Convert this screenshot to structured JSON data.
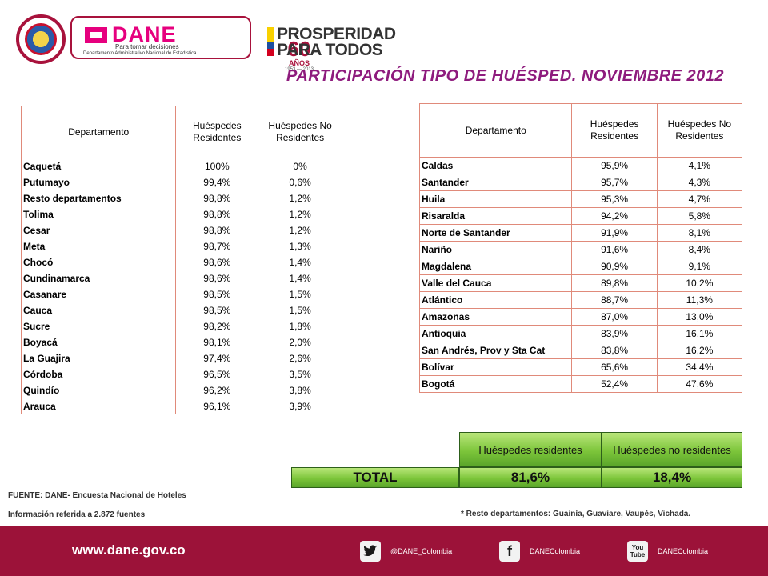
{
  "header": {
    "seal_text": "REPÚBLICA DE COLOMBIA",
    "dane": {
      "wordmark": "DANE",
      "tagline": "Para tomar decisiones",
      "subtitle": "Departamento Administrativo Nacional de Estadística"
    },
    "anniversary": {
      "number": "60",
      "label": "AÑOS",
      "years": "1953 — 2013"
    },
    "prosperidad": {
      "line1": "PROSPERIDAD",
      "line2": "PARA TODOS"
    }
  },
  "title": "PARTICIPACIÓN  TIPO DE HUÉSPED. NOVIEMBRE 2012",
  "table_left": {
    "headers": [
      "Departamento",
      "Huéspedes Residentes",
      "Huéspedes No Residentes"
    ],
    "rows": [
      [
        "Caquetá",
        "100%",
        "0%"
      ],
      [
        "Putumayo",
        "99,4%",
        "0,6%"
      ],
      [
        "Resto departamentos",
        "98,8%",
        "1,2%"
      ],
      [
        "Tolima",
        "98,8%",
        "1,2%"
      ],
      [
        "Cesar",
        "98,8%",
        "1,2%"
      ],
      [
        "Meta",
        "98,7%",
        "1,3%"
      ],
      [
        "Chocó",
        "98,6%",
        "1,4%"
      ],
      [
        "Cundinamarca",
        "98,6%",
        "1,4%"
      ],
      [
        "Casanare",
        "98,5%",
        "1,5%"
      ],
      [
        "Cauca",
        "98,5%",
        "1,5%"
      ],
      [
        "Sucre",
        "98,2%",
        "1,8%"
      ],
      [
        "Boyacá",
        "98,1%",
        "2,0%"
      ],
      [
        "La Guajira",
        "97,4%",
        "2,6%"
      ],
      [
        "Córdoba",
        "96,5%",
        "3,5%"
      ],
      [
        "Quindío",
        "96,2%",
        "3,8%"
      ],
      [
        "Arauca",
        "96,1%",
        "3,9%"
      ]
    ]
  },
  "table_right": {
    "headers": [
      "Departamento",
      "Huéspedes Residentes",
      "Huéspedes No Residentes"
    ],
    "rows": [
      [
        "Caldas",
        "95,9%",
        "4,1%"
      ],
      [
        "Santander",
        "95,7%",
        "4,3%"
      ],
      [
        "Huila",
        "95,3%",
        "4,7%"
      ],
      [
        "Risaralda",
        "94,2%",
        "5,8%"
      ],
      [
        "Norte de Santander",
        "91,9%",
        "8,1%"
      ],
      [
        "Nariño",
        "91,6%",
        "8,4%"
      ],
      [
        "Magdalena",
        "90,9%",
        "9,1%"
      ],
      [
        "Valle del Cauca",
        "89,8%",
        "10,2%"
      ],
      [
        "Atlántico",
        "88,7%",
        "11,3%"
      ],
      [
        "Amazonas",
        "87,0%",
        "13,0%"
      ],
      [
        "Antioquia",
        "83,9%",
        "16,1%"
      ],
      [
        "San Andrés, Prov y Sta Cat",
        "83,8%",
        "16,2%"
      ],
      [
        "Bolívar",
        "65,6%",
        "34,4%"
      ],
      [
        "Bogotá",
        "52,4%",
        "47,6%"
      ]
    ]
  },
  "totals": {
    "header_residentes": "Huéspedes residentes",
    "header_no_residentes": "Huéspedes no residentes",
    "label": "TOTAL",
    "residentes": "81,6%",
    "no_residentes": "18,4%"
  },
  "footnotes": {
    "fuente": "FUENTE: DANE- Encuesta Nacional de Hoteles",
    "informacion": "Información referida a 2.872 fuentes",
    "resto": "* Resto departamentos: Guainía, Guaviare, Vaupés, Vichada."
  },
  "footer": {
    "url": "www.dane.gov.co",
    "twitter": "@DANE_Colombia",
    "facebook": "DANEColombia",
    "youtube": "DANEColombia"
  },
  "colors": {
    "brand_magenta": "#e6007e",
    "brand_maroon": "#9c1239",
    "title_purple": "#8e1b7d",
    "total_green": "#7cc53a",
    "table_border": "#e08a7a"
  }
}
